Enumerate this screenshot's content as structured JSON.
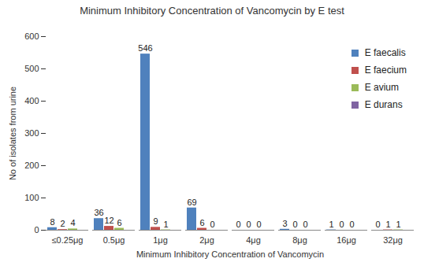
{
  "chart_data": {
    "type": "bar",
    "title": "Minimum Inhibitory Concentration of Vancomycin by E test",
    "x_label": "Minimum Inhibitory Concentration of Vancomycin",
    "y_label": "No of isolates from urine",
    "categories": [
      "≤0.25μg",
      "0.5μg",
      "1μg",
      "2μg",
      "4μg",
      "8μg",
      "16μg",
      "32μg"
    ],
    "series": [
      {
        "name": "E faecalis",
        "color": "#4f81bd",
        "values": [
          8,
          36,
          546,
          69,
          0,
          3,
          1,
          0
        ]
      },
      {
        "name": "E  faecium",
        "color": "#c0504d",
        "values": [
          2,
          12,
          9,
          6,
          0,
          0,
          0,
          1
        ]
      },
      {
        "name": "E  avium",
        "color": "#9bbb59",
        "values": [
          4,
          6,
          1,
          0,
          0,
          0,
          0,
          1
        ]
      },
      {
        "name": "E durans",
        "color": "#8064a2",
        "values": [
          null,
          null,
          null,
          null,
          null,
          null,
          null,
          null
        ]
      }
    ],
    "ylim": [
      0,
      600
    ],
    "yticks": [
      0,
      100,
      200,
      300,
      400,
      500,
      600
    ],
    "grid": false,
    "legend": "top-right",
    "data_labels": true
  }
}
